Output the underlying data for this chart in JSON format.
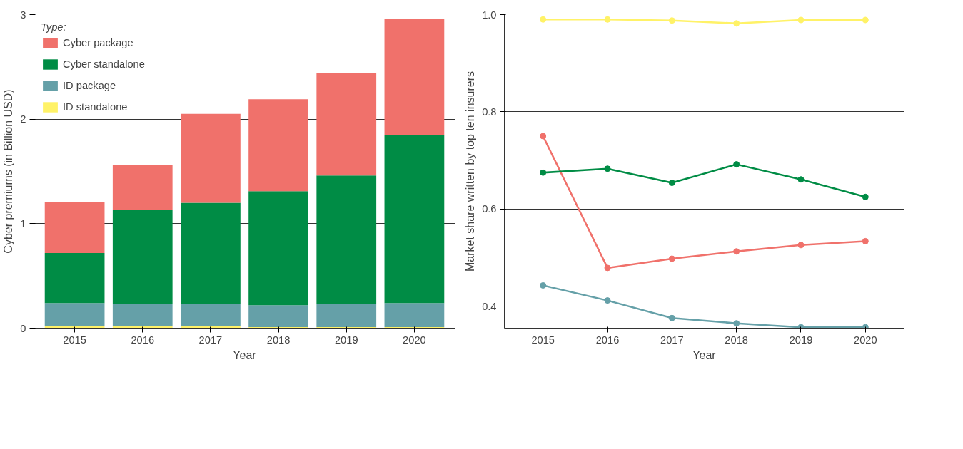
{
  "chart_data": [
    {
      "type": "bar",
      "stacked": true,
      "categories": [
        "2015",
        "2016",
        "2017",
        "2018",
        "2019",
        "2020"
      ],
      "xlabel": "Year",
      "ylabel": "Cyber premiums (in Billion USD)",
      "ylim": [
        0,
        3
      ],
      "yticks": [
        0,
        1,
        2,
        3
      ],
      "grid": "y",
      "legend": "top left",
      "legend_title": "Type:",
      "series": [
        {
          "name": "ID standalone",
          "color": "#fff267",
          "values": [
            0.02,
            0.02,
            0.02,
            0.01,
            0.01,
            0.01
          ]
        },
        {
          "name": "ID package",
          "color": "#65a0a8",
          "values": [
            0.22,
            0.21,
            0.21,
            0.21,
            0.22,
            0.23
          ]
        },
        {
          "name": "Cyber standalone",
          "color": "#008c45",
          "values": [
            0.48,
            0.9,
            0.97,
            1.09,
            1.23,
            1.61
          ]
        },
        {
          "name": "Cyber package",
          "color": "#f0716b",
          "values": [
            0.49,
            0.43,
            0.85,
            0.88,
            0.98,
            1.11
          ]
        }
      ]
    },
    {
      "type": "line",
      "categories": [
        "2015",
        "2016",
        "2017",
        "2018",
        "2019",
        "2020"
      ],
      "xlabel": "Year",
      "ylabel": "Market share written by top ten insurers",
      "ylim": [
        0.355,
        1.0
      ],
      "yticks": [
        0.4,
        0.6,
        0.8,
        {
          "value": 1.0,
          "label": "1.0"
        }
      ],
      "grid": "y",
      "marker": "circle",
      "line_style": "solid",
      "series": [
        {
          "color": "#fff267",
          "values": [
            0.99,
            0.99,
            0.988,
            0.982,
            0.989,
            0.989
          ]
        },
        {
          "color": "#f0716b",
          "values": [
            0.75,
            0.479,
            0.498,
            0.513,
            0.526,
            0.534
          ]
        },
        {
          "color": "#008c45",
          "values": [
            0.675,
            0.683,
            0.654,
            0.692,
            0.661,
            0.625
          ]
        },
        {
          "color": "#65a0a8",
          "values": [
            0.443,
            0.412,
            0.376,
            0.365,
            0.357,
            0.357
          ]
        }
      ]
    }
  ]
}
